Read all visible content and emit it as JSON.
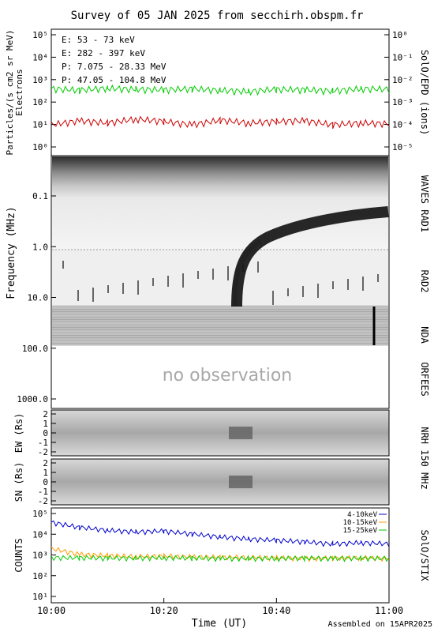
{
  "title": "Survey of 05 JAN 2025 from secchirh.obspm.fr",
  "footer": "Assembled on 15APR2025",
  "xaxis": {
    "label": "Time (UT)",
    "ticks": [
      "10:00",
      "10:20",
      "10:40",
      "11:00"
    ],
    "range_minutes": [
      0,
      60
    ]
  },
  "colors": {
    "green": "#00cc00",
    "red": "#cc0000",
    "black": "#000000",
    "blue": "#0000cc",
    "orange": "#ff9900"
  },
  "epd": {
    "ylabel_left": "Particles/(s cm2 sr MeV)",
    "ylabel_left_2": "Electrons",
    "ylabel_right": "SolO/EPD (ions)",
    "left_ticks": [
      "10⁵",
      "10⁴",
      "10³",
      "10²",
      "10¹",
      "10⁰"
    ],
    "right_ticks": [
      "10⁰",
      "10⁻¹",
      "10⁻²",
      "10⁻³",
      "10⁻⁴",
      "10⁻⁵"
    ],
    "legend": [
      {
        "text": "E: 53 - 73 keV",
        "color": "#00cc00"
      },
      {
        "text": "E: 282 - 397 keV",
        "color": "#cc0000"
      },
      {
        "text": "P: 7.075 - 28.33 MeV",
        "color": "#000000"
      },
      {
        "text": "P: 47.05 - 104.8 MeV",
        "color": "#0000cc"
      }
    ]
  },
  "spectrogram": {
    "ylabel": "Frequency (MHz)",
    "ticks": [
      "0.1",
      "1.0",
      "10.0",
      "100.0",
      "1000.0"
    ],
    "right_labels": [
      "WAVES RAD1",
      "RAD2",
      "NDA",
      "ORFEES"
    ],
    "no_obs": "no observation"
  },
  "nrh": {
    "ew_label": "EW (Rs)",
    "sn_label": "SN (Rs)",
    "ticks": [
      "2",
      "1",
      "0",
      "-1",
      "-2"
    ],
    "right_label": "NRH 150 MHz"
  },
  "stix": {
    "ylabel": "COUNTS",
    "right_label": "SolO/STIX",
    "ticks": [
      "10⁵",
      "10⁴",
      "10³",
      "10²",
      "10¹"
    ],
    "legend": [
      {
        "text": "4-10keV",
        "color": "#0000cc"
      },
      {
        "text": "10-15keV",
        "color": "#ff9900"
      },
      {
        "text": "15-25keV",
        "color": "#00cc00"
      }
    ]
  },
  "chart_data": [
    {
      "type": "line",
      "title": "",
      "ylabel": "Particles/(s cm2 sr MeV)",
      "yscale": "log",
      "ylim": [
        1,
        100000
      ],
      "x": [
        0,
        5,
        10,
        15,
        20,
        25,
        30,
        35,
        40,
        45,
        50,
        55,
        60
      ],
      "series": [
        {
          "name": "E: 53 - 73 keV",
          "values": [
            400,
            350,
            420,
            380,
            360,
            400,
            340,
            300,
            380,
            360,
            320,
            400,
            380
          ]
        },
        {
          "name": "E: 282 - 397 keV",
          "values": [
            10,
            15,
            12,
            18,
            14,
            10,
            16,
            12,
            14,
            15,
            10,
            12,
            11
          ]
        }
      ]
    },
    {
      "type": "line",
      "ylabel": "COUNTS",
      "yscale": "log",
      "ylim": [
        1,
        100000
      ],
      "x": [
        0,
        5,
        10,
        15,
        20,
        25,
        30,
        35,
        40,
        45,
        50,
        55,
        60
      ],
      "series": [
        {
          "name": "4-10keV",
          "values": [
            30000,
            15000,
            10000,
            8000,
            9000,
            6000,
            4000,
            3000,
            2500,
            2000,
            1500,
            1800,
            1500
          ]
        },
        {
          "name": "10-15keV",
          "values": [
            800,
            350,
            300,
            260,
            280,
            250,
            240,
            230,
            220,
            200,
            210,
            220,
            200
          ]
        },
        {
          "name": "15-25keV",
          "values": [
            220,
            220,
            210,
            210,
            220,
            210,
            200,
            200,
            200,
            210,
            200,
            205,
            200
          ]
        }
      ]
    }
  ]
}
